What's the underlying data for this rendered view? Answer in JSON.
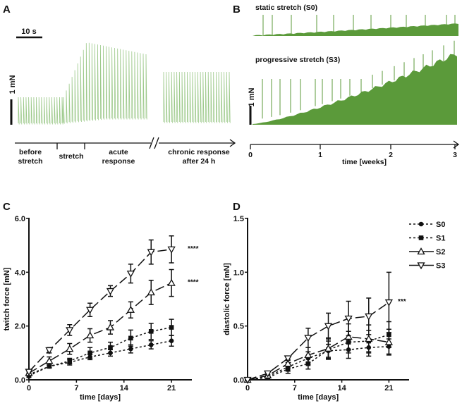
{
  "panel_labels": {
    "a": "A",
    "b": "B",
    "c": "C",
    "d": "D"
  },
  "colors": {
    "trace_a": "#9cc98a",
    "trace_b": "#5b9a3a",
    "ink": "#111111"
  },
  "chart_data": [
    {
      "type": "line",
      "panel": "A",
      "title": "",
      "scale_time": "10 s",
      "scale_force": "1 mN",
      "phases": [
        "before stretch",
        "stretch",
        "acute response",
        "chronic response after 24 h"
      ],
      "phase_lines": [
        [
          "before",
          "stretch"
        ],
        [
          "stretch"
        ],
        [
          "acute",
          "response"
        ],
        [
          "chronic response",
          "after 24 h"
        ]
      ],
      "relative_twitch_amplitude": {
        "before stretch": 1.0,
        "acute peak": 3.1,
        "acute end": 2.6,
        "chronic": 1.9
      }
    },
    {
      "type": "line",
      "panel": "B",
      "traces": [
        "static stretch (S0)",
        "progressive stretch (S3)"
      ],
      "scale_force": "1 mN",
      "xlabel": "time [weeks]",
      "xticks": [
        "0",
        "1",
        "2",
        "3"
      ],
      "xlim": [
        0,
        3
      ]
    },
    {
      "type": "line",
      "panel": "C",
      "xlabel": "time [days]",
      "ylabel": "twitch force [mN]",
      "xticks": [
        "0",
        "7",
        "14",
        "21"
      ],
      "yticks": [
        "0.0",
        "2.0",
        "4.0",
        "6.0"
      ],
      "xlim": [
        0,
        24
      ],
      "ylim": [
        0,
        6
      ],
      "x": [
        0,
        3,
        6,
        9,
        12,
        15,
        18,
        21
      ],
      "series": [
        {
          "name": "S0",
          "values": [
            0.2,
            0.5,
            0.65,
            0.85,
            1.0,
            1.15,
            1.3,
            1.45
          ],
          "errors": [
            0.05,
            0.05,
            0.1,
            0.1,
            0.12,
            0.15,
            0.15,
            0.2
          ]
        },
        {
          "name": "S1",
          "values": [
            0.15,
            0.5,
            0.7,
            1.0,
            1.2,
            1.55,
            1.8,
            1.95
          ],
          "errors": [
            0.05,
            0.05,
            0.1,
            0.2,
            0.2,
            0.3,
            0.3,
            0.3
          ]
        },
        {
          "name": "S2",
          "values": [
            0.25,
            0.7,
            1.15,
            1.65,
            1.95,
            2.6,
            3.25,
            3.6
          ],
          "errors": [
            0.05,
            0.15,
            0.2,
            0.25,
            0.25,
            0.3,
            0.45,
            0.5
          ]
        },
        {
          "name": "S3",
          "values": [
            0.3,
            1.1,
            1.85,
            2.6,
            3.3,
            3.95,
            4.75,
            4.85
          ],
          "errors": [
            0.05,
            0.1,
            0.2,
            0.25,
            0.2,
            0.35,
            0.45,
            0.5
          ]
        }
      ],
      "annotations": [
        {
          "series": "S3",
          "text": "****"
        },
        {
          "series": "S2",
          "text": "****"
        }
      ]
    },
    {
      "type": "line",
      "panel": "D",
      "xlabel": "time [days]",
      "ylabel": "diastolic force [mN]",
      "xticks": [
        "0",
        "7",
        "14",
        "21"
      ],
      "yticks": [
        "0.0",
        "0.5",
        "1.0",
        "1.5"
      ],
      "xlim": [
        0,
        24
      ],
      "ylim": [
        0,
        1.5
      ],
      "x": [
        0,
        3,
        6,
        9,
        12,
        15,
        18,
        21
      ],
      "series": [
        {
          "name": "S0",
          "values": [
            0,
            0.03,
            0.12,
            0.2,
            0.27,
            0.28,
            0.3,
            0.31
          ],
          "errors": [
            0,
            0.01,
            0.04,
            0.06,
            0.06,
            0.08,
            0.08,
            0.07
          ]
        },
        {
          "name": "S1",
          "values": [
            0,
            0.02,
            0.1,
            0.15,
            0.28,
            0.35,
            0.36,
            0.42
          ],
          "errors": [
            0,
            0.01,
            0.04,
            0.05,
            0.08,
            0.1,
            0.1,
            0.12
          ]
        },
        {
          "name": "S2",
          "values": [
            0,
            0.04,
            0.15,
            0.23,
            0.29,
            0.4,
            0.38,
            0.35
          ],
          "errors": [
            0,
            0.01,
            0.04,
            0.07,
            0.1,
            0.12,
            0.13,
            0.12
          ]
        },
        {
          "name": "S3",
          "values": [
            0,
            0.06,
            0.2,
            0.39,
            0.5,
            0.57,
            0.59,
            0.72
          ],
          "errors": [
            0,
            0.01,
            0.02,
            0.09,
            0.12,
            0.16,
            0.17,
            0.28
          ]
        }
      ],
      "annotations": [
        {
          "series": "S3",
          "text": "***"
        }
      ],
      "legend": {
        "placement": "top-right",
        "entries": [
          "S0",
          "S1",
          "S2",
          "S3"
        ]
      }
    }
  ]
}
